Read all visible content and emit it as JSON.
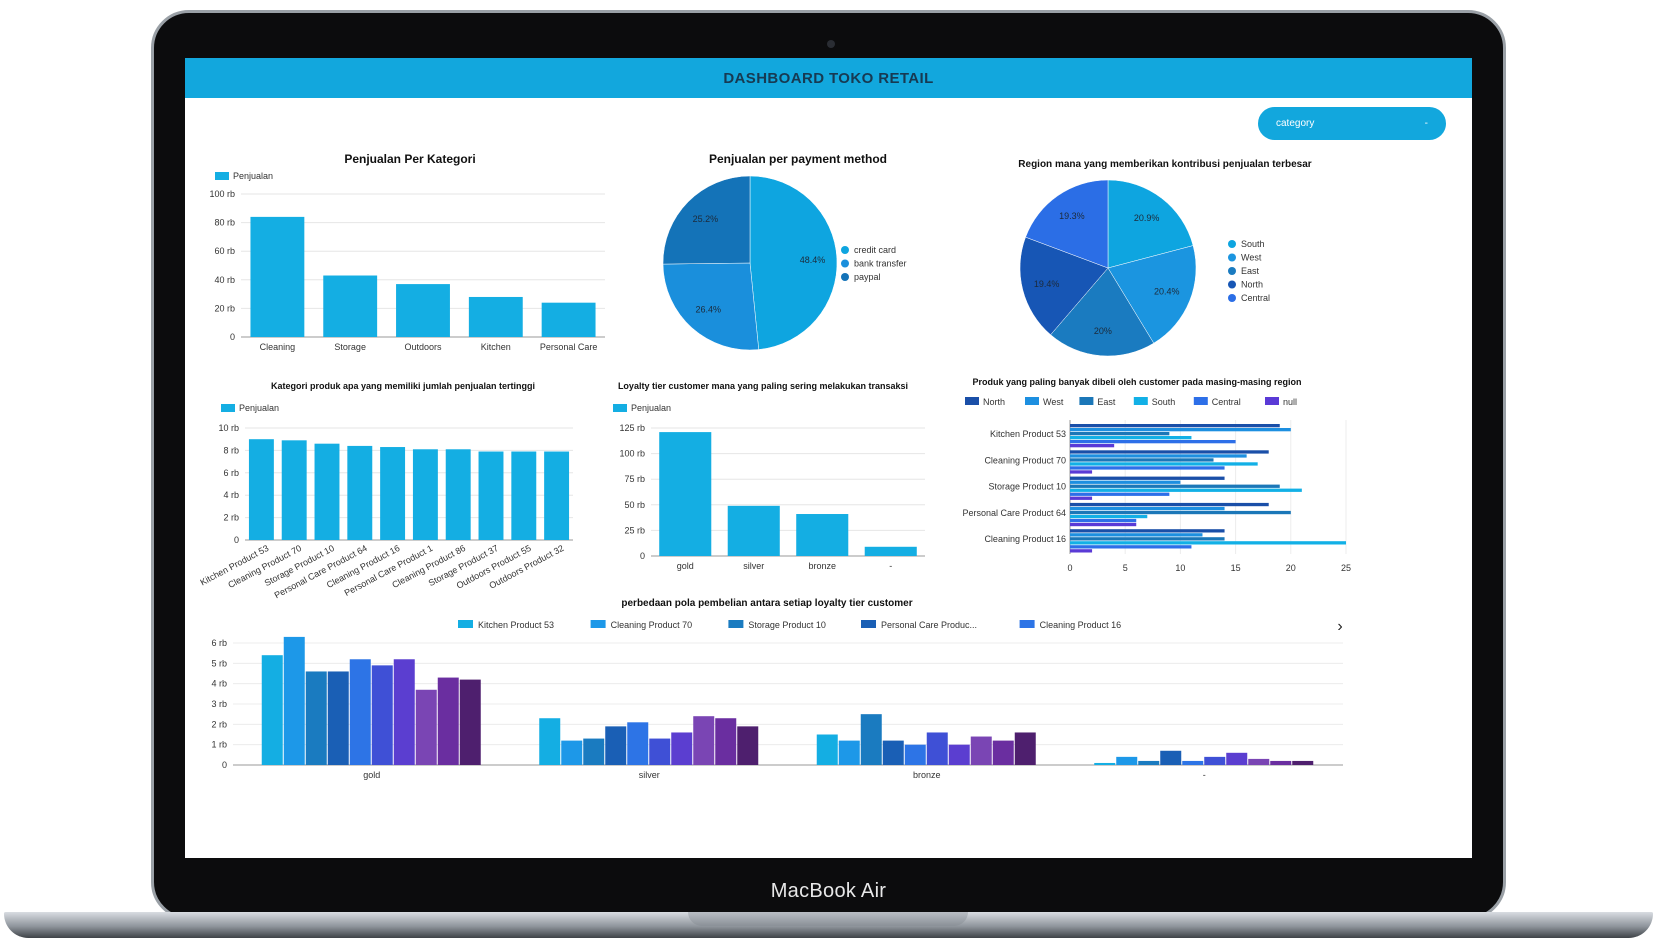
{
  "device": {
    "brand": "MacBook Air"
  },
  "header": {
    "title": "DASHBOARD TOKO RETAIL"
  },
  "filter": {
    "label": "category",
    "arrow": "-"
  },
  "colors": {
    "header": "#12a7dd",
    "primary": "#14aee3"
  },
  "chart_data": [
    {
      "id": "category_sales",
      "type": "bar",
      "title": "Penjualan Per Kategori",
      "legend": [
        "Penjualan"
      ],
      "categories": [
        "Cleaning",
        "Storage",
        "Outdoors",
        "Kitchen",
        "Personal Care"
      ],
      "values": [
        84000,
        43000,
        37000,
        28000,
        24000
      ],
      "yticks": [
        "0",
        "20 rb",
        "40 rb",
        "60 rb",
        "80 rb",
        "100 rb"
      ],
      "ylim": [
        0,
        100000
      ]
    },
    {
      "id": "payment_pie",
      "type": "pie",
      "title": "Penjualan per payment method",
      "labels": [
        "credit card",
        "bank transfer",
        "paypal"
      ],
      "values": [
        48.4,
        26.4,
        25.2
      ],
      "value_labels": [
        "48.4%",
        "26.4%",
        "25.2%"
      ],
      "colors": [
        "#0ea5e0",
        "#1a8fdc",
        "#1473b8"
      ]
    },
    {
      "id": "region_pie",
      "type": "pie",
      "title": "Region mana yang memberikan kontribusi penjualan terbesar",
      "labels": [
        "South",
        "West",
        "East",
        "North",
        "Central"
      ],
      "values": [
        20.9,
        20.4,
        20,
        19.4,
        19.3
      ],
      "value_labels": [
        "20.9%",
        "20.4%",
        "20%",
        "19.4%",
        "19.3%"
      ],
      "colors": [
        "#0ea5e0",
        "#1b95e0",
        "#1a7bc0",
        "#1756b5",
        "#2b6ee6"
      ]
    },
    {
      "id": "product_sales",
      "type": "bar",
      "title": "Kategori produk apa yang memiliki jumlah penjualan tertinggi",
      "legend": [
        "Penjualan"
      ],
      "categories": [
        "Kitchen Product 53",
        "Cleaning Product 70",
        "Storage Product 10",
        "Personal Care Product 64",
        "Cleaning Product 16",
        "Personal Care Product 1",
        "Cleaning Product 86",
        "Storage Product 37",
        "Outdoors Product 55",
        "Outdoors Product 32"
      ],
      "values": [
        9000,
        8900,
        8600,
        8400,
        8300,
        8100,
        8100,
        7900,
        7900,
        7900
      ],
      "yticks": [
        "0",
        "2 rb",
        "4 rb",
        "6 rb",
        "8 rb",
        "10 rb"
      ],
      "ylim": [
        0,
        10000
      ]
    },
    {
      "id": "loyalty_sales",
      "type": "bar",
      "title": "Loyalty tier customer mana yang paling sering melakukan transaksi",
      "legend": [
        "Penjualan"
      ],
      "categories": [
        "gold",
        "silver",
        "bronze",
        "-"
      ],
      "values": [
        121000,
        49000,
        41000,
        9000
      ],
      "yticks": [
        "0",
        "25 rb",
        "50 rb",
        "75 rb",
        "100 rb",
        "125 rb"
      ],
      "ylim": [
        0,
        125000
      ]
    },
    {
      "id": "region_products",
      "type": "bar",
      "orientation": "horizontal",
      "title": "Produk yang paling banyak dibeli oleh customer pada masing-masing region",
      "categories": [
        "Kitchen Product 53",
        "Cleaning Product 70",
        "Storage Product 10",
        "Personal Care Product 64",
        "Cleaning Product 16"
      ],
      "xticks": [
        "0",
        "5",
        "10",
        "15",
        "20",
        "25"
      ],
      "xlim": [
        0,
        25
      ],
      "series": [
        {
          "name": "North",
          "color": "#1a4fa8",
          "values": [
            19,
            18,
            14,
            18,
            14
          ]
        },
        {
          "name": "West",
          "color": "#1d8fe0",
          "values": [
            20,
            16,
            10,
            14,
            12
          ]
        },
        {
          "name": "East",
          "color": "#1b77b8",
          "values": [
            9,
            13,
            19,
            20,
            14
          ]
        },
        {
          "name": "South",
          "color": "#12b0e6",
          "values": [
            11,
            17,
            21,
            7,
            25
          ]
        },
        {
          "name": "Central",
          "color": "#2d6fe8",
          "values": [
            15,
            14,
            9,
            6,
            11
          ]
        },
        {
          "name": "null",
          "color": "#5a3ad6",
          "values": [
            4,
            2,
            2,
            6,
            2
          ]
        }
      ]
    },
    {
      "id": "loyalty_patterns",
      "type": "bar",
      "title": "perbedaan pola pembelian antara setiap loyalty tier customer",
      "categories": [
        "gold",
        "silver",
        "bronze",
        "-"
      ],
      "yticks": [
        "0",
        "1 rb",
        "2 rb",
        "3 rb",
        "4 rb",
        "5 rb",
        "6 rb"
      ],
      "ylim": [
        0,
        6000
      ],
      "legend_names": [
        "Kitchen Product 53",
        "Cleaning Product 70",
        "Storage Product 10",
        "Personal Care Produc...",
        "Cleaning Product 16"
      ],
      "legend_next": "›",
      "series": [
        {
          "color": "#14aee3",
          "values": [
            5400,
            2300,
            1500,
            100
          ]
        },
        {
          "color": "#1d98e8",
          "values": [
            6300,
            1200,
            1200,
            400
          ]
        },
        {
          "color": "#1a7bc0",
          "values": [
            4600,
            1300,
            2500,
            200
          ]
        },
        {
          "color": "#1a5fb5",
          "values": [
            4600,
            1900,
            1200,
            700
          ]
        },
        {
          "color": "#2d74e6",
          "values": [
            5200,
            2100,
            1000,
            200
          ]
        },
        {
          "color": "#3f50d6",
          "values": [
            4900,
            1300,
            1600,
            400
          ]
        },
        {
          "color": "#5b3ed0",
          "values": [
            5200,
            1600,
            1000,
            600
          ]
        },
        {
          "color": "#7a45b4",
          "values": [
            3700,
            2400,
            1400,
            300
          ]
        },
        {
          "color": "#6a2ea0",
          "values": [
            4300,
            2300,
            1200,
            200
          ]
        },
        {
          "color": "#4e1f6e",
          "values": [
            4200,
            1900,
            1600,
            200
          ]
        }
      ]
    }
  ]
}
